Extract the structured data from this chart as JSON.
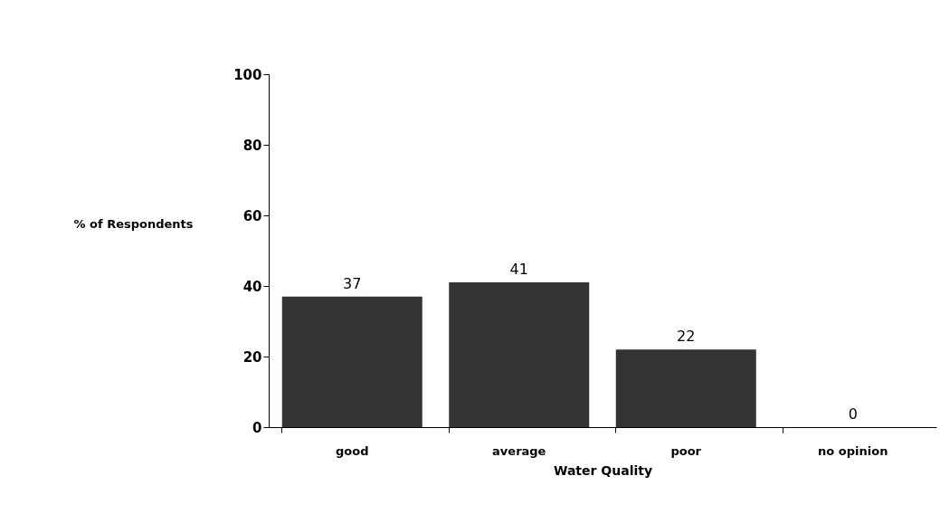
{
  "chart_data": {
    "type": "bar",
    "xlabel": "Water Quality",
    "ylabel": "% of Respondents",
    "categories": [
      "good",
      "average",
      "poor",
      "no opinion"
    ],
    "values": [
      37,
      41,
      22,
      0
    ],
    "color": "#333333",
    "ylim": [
      0,
      100
    ],
    "yticks": [
      0,
      20,
      40,
      60,
      80,
      100
    ],
    "grid": false,
    "data_labels": true
  }
}
